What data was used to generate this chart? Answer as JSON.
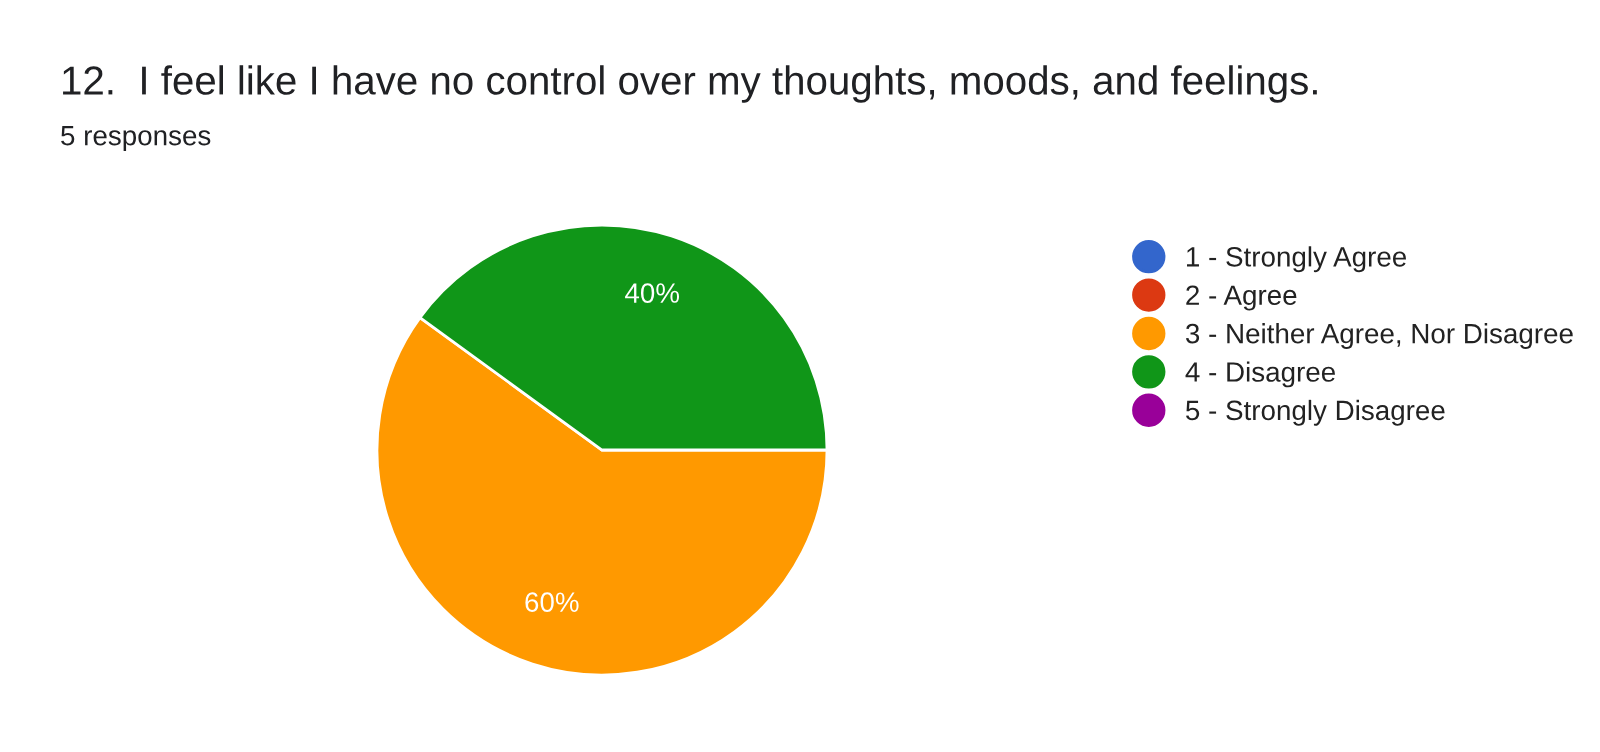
{
  "chart_data": {
    "type": "pie",
    "title": "12.  I feel like I have no control over my thoughts, moods, and feelings.",
    "subtitle": "5 responses",
    "categories": [
      "1 - Strongly Agree",
      "2 - Agree",
      "3 - Neither Agree, Nor Disagree",
      "4 - Disagree",
      "5 - Strongly Disagree"
    ],
    "values": [
      0,
      0,
      60,
      40,
      0
    ],
    "colors": [
      "#3366cc",
      "#dc3912",
      "#ff9900",
      "#109618",
      "#990099"
    ],
    "value_labels": [
      null,
      null,
      "60%",
      "40%",
      null
    ],
    "legend": "right"
  }
}
